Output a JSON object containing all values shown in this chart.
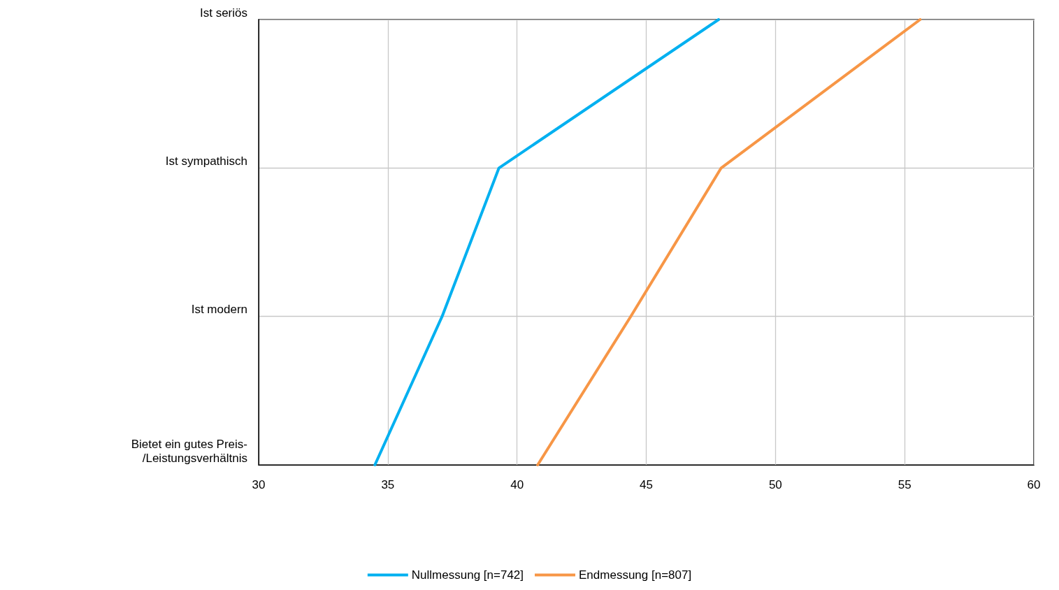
{
  "chart_data": {
    "type": "line",
    "orientation": "horizontal",
    "categories": [
      "Ist seriös",
      "Ist sympathisch",
      "Ist modern",
      "Bietet ein gutes Preis-\n/Leistungsverhältnis"
    ],
    "series": [
      {
        "name": "Nullmessung [n=742]",
        "color": "#00b0f0",
        "values": [
          47.8,
          39.3,
          37.1,
          34.5
        ]
      },
      {
        "name": "Endmessung [n=807]",
        "color": "#f79646",
        "values": [
          55.6,
          47.9,
          44.4,
          40.8
        ]
      }
    ],
    "xlim": [
      30,
      60
    ],
    "xticks": [
      30,
      35,
      40,
      45,
      50,
      55,
      60
    ],
    "grid": true,
    "legend": "bottom",
    "marker": "none",
    "line_style": "solid"
  }
}
